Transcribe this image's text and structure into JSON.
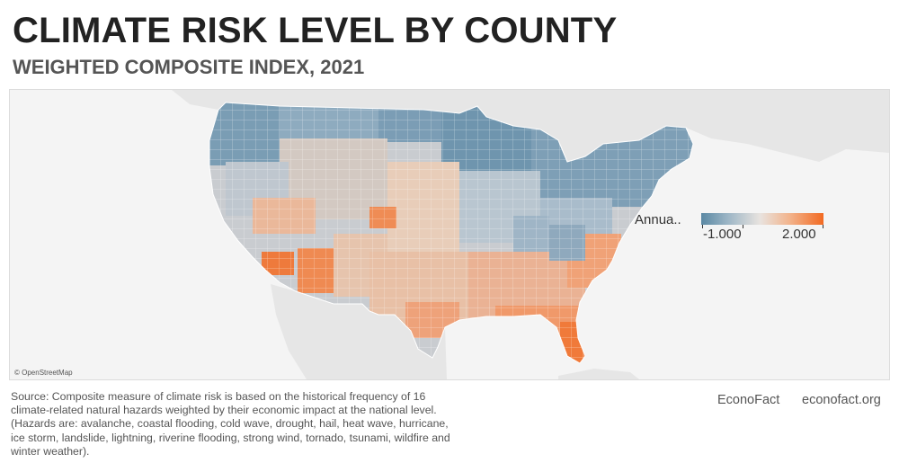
{
  "header": {
    "title": "CLIMATE RISK LEVEL BY COUNTY",
    "subtitle": "WEIGHTED COMPOSITE INDEX, 2021"
  },
  "map": {
    "attribution": "© OpenStreetMap",
    "legend": {
      "title": "Annua..",
      "min_label": "-1.000",
      "max_label": "2.000",
      "colors": {
        "low": "#5a88a3",
        "mid": "#e8e3df",
        "high": "#f26a22"
      }
    },
    "colors": {
      "background": "#f4f4f4",
      "land": "#e6e6e6",
      "water": "#f4f4f4",
      "county_border": "#ffffff"
    }
  },
  "footer": {
    "source_text": "Source: Composite measure of climate risk is based on the historical frequency of 16 climate-related natural hazards weighted by their economic impact at the national level. (Hazards are: avalanche, coastal flooding, cold wave, drought, hail, heat wave, hurricane, ice storm, landslide, lightning, riverine flooding, strong wind, tornado, tsunami, wildfire and winter weather).",
    "brand": "EconoFact",
    "brand_url": "econofact.org"
  }
}
